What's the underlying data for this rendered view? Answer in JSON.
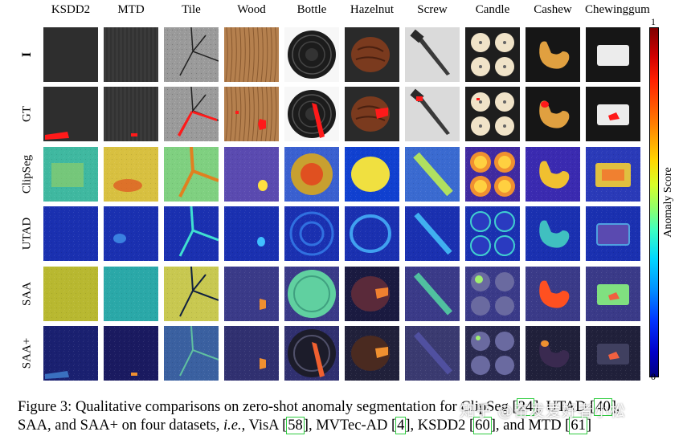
{
  "figure": {
    "columns": [
      "KSDD2",
      "MTD",
      "Tile",
      "Wood",
      "Bottle",
      "Hazelnut",
      "Screw",
      "Candle",
      "Cashew",
      "Chewinggum"
    ],
    "rows": [
      "I",
      "GT",
      "ClipSeg",
      "UTAD",
      "SAA",
      "SAA+"
    ],
    "colorbar": {
      "max_label": "1",
      "min_label": "0",
      "title": "Anomaly Score"
    }
  },
  "caption": {
    "line1_a": "Figure 3: Qualitative comparisons on zero-shot anomaly segmentation for ClipSeg [",
    "ref1": "24",
    "line1_b": "], UTAD [",
    "ref2": "40",
    "line1_c": "],",
    "line2_a": "SAA, and SAA+ on four datasets, ",
    "line2_ie": "i.e.",
    "line2_b": ", VisA [",
    "ref3": "58",
    "line2_c": "], MVTec-AD [",
    "ref4": "4",
    "line2_d": "], KSDD2 [",
    "ref5": "60",
    "line2_e": "], and MTD [",
    "ref6": "61",
    "line2_f": "]"
  },
  "watermark": "知乎 @奋发爱好者小松"
}
